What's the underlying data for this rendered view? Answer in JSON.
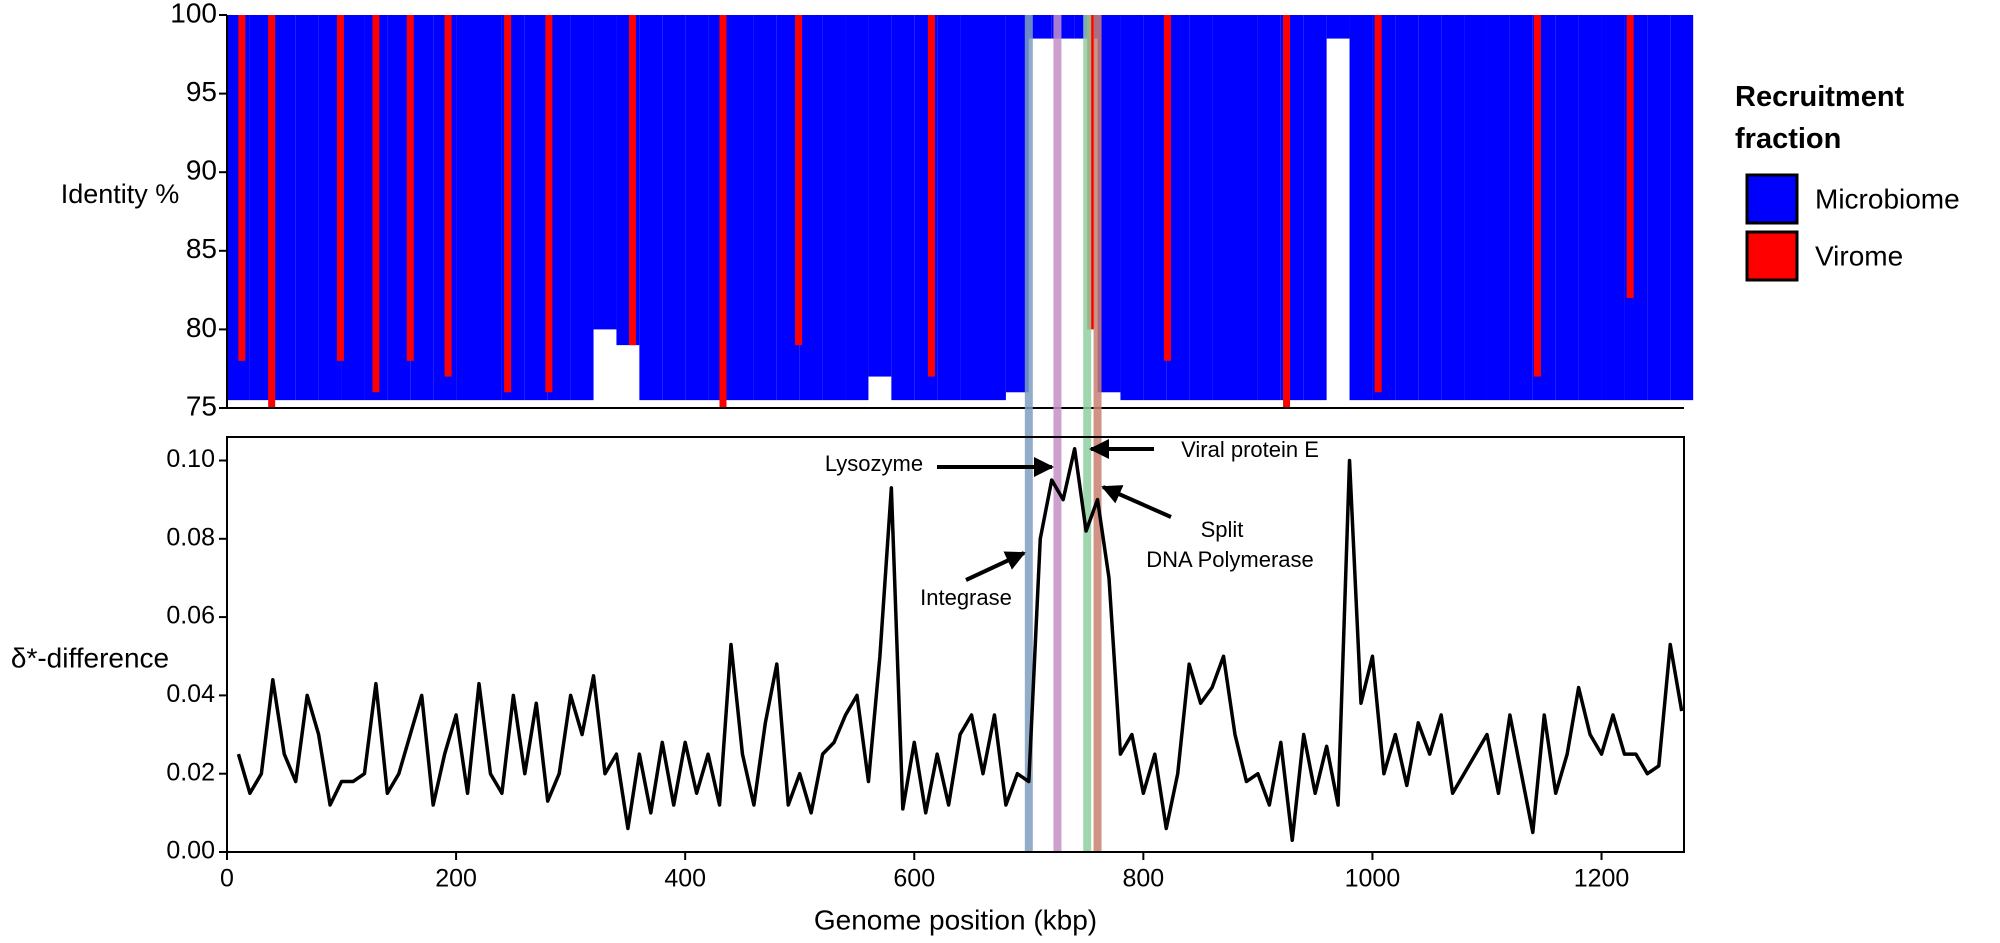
{
  "chart_data": [
    {
      "type": "recruitment",
      "y_label": "Identity %",
      "xlim": [
        0,
        1272
      ],
      "ylim": [
        75,
        100
      ],
      "yticks": [
        75,
        80,
        85,
        90,
        95,
        100
      ],
      "legend_title": "Recruitment fraction",
      "series": [
        {
          "name": "Microbiome",
          "color": "#0000ff",
          "x": [
            10,
            30,
            50,
            70,
            90,
            110,
            130,
            150,
            170,
            190,
            210,
            230,
            250,
            270,
            290,
            310,
            330,
            350,
            370,
            390,
            410,
            430,
            450,
            470,
            490,
            510,
            530,
            550,
            570,
            590,
            610,
            630,
            650,
            670,
            690,
            710,
            730,
            750,
            770,
            790,
            810,
            830,
            850,
            870,
            890,
            910,
            930,
            950,
            970,
            990,
            1010,
            1030,
            1050,
            1070,
            1090,
            1110,
            1130,
            1150,
            1170,
            1190,
            1210,
            1230,
            1250,
            1270
          ],
          "values": [
            75.5,
            75.5,
            75.5,
            75.5,
            75.5,
            75.5,
            75.5,
            75.5,
            75.5,
            75.5,
            75.5,
            75.5,
            75.5,
            75.5,
            75.5,
            75.5,
            80,
            79,
            75.5,
            75.5,
            75.5,
            75.5,
            75.5,
            75.5,
            75.5,
            75.5,
            75.5,
            75.5,
            77,
            75.5,
            75.5,
            75.5,
            75.5,
            75.5,
            76,
            98.5,
            98.5,
            98.5,
            76,
            75.5,
            75.5,
            75.5,
            75.5,
            75.5,
            75.5,
            75.5,
            75.5,
            75.5,
            98.5,
            75.5,
            75.5,
            75.5,
            75.5,
            75.5,
            75.5,
            75.5,
            75.5,
            75.5,
            75.5,
            75.5,
            75.5,
            75.5,
            75.5,
            75.5
          ]
        },
        {
          "name": "Virome",
          "color": "#ff0000",
          "x": [
            13,
            39,
            99,
            130,
            160,
            193,
            245,
            281,
            354,
            433,
            499,
            615,
            754,
            821,
            925,
            1005,
            1144,
            1225
          ],
          "values": [
            78,
            75,
            78,
            76,
            78,
            77,
            76,
            76,
            79,
            75,
            79,
            77,
            80,
            78,
            75,
            76,
            77,
            82
          ]
        }
      ]
    },
    {
      "type": "line",
      "x_label": "Genome position (kbp)",
      "y_label": "δ*-difference",
      "xlim": [
        0,
        1272
      ],
      "ylim": [
        0,
        0.106
      ],
      "xticks": [
        0,
        200,
        400,
        600,
        800,
        1000,
        1200
      ],
      "yticks": [
        {
          "value": 0,
          "label": "0.00"
        },
        {
          "value": 0.02,
          "label": "0.02"
        },
        {
          "value": 0.04,
          "label": "0.04"
        },
        {
          "value": 0.06,
          "label": "0.06"
        },
        {
          "value": 0.08,
          "label": "0.08"
        },
        {
          "value": 0.1,
          "label": "0.10"
        }
      ],
      "color": "#000000",
      "x": [
        10,
        20,
        30,
        40,
        50,
        60,
        70,
        80,
        90,
        100,
        110,
        120,
        130,
        140,
        150,
        160,
        170,
        180,
        190,
        200,
        210,
        220,
        230,
        240,
        250,
        260,
        270,
        280,
        290,
        300,
        310,
        320,
        330,
        340,
        350,
        360,
        370,
        380,
        390,
        400,
        410,
        420,
        430,
        440,
        450,
        460,
        470,
        480,
        490,
        500,
        510,
        520,
        530,
        540,
        550,
        560,
        570,
        580,
        590,
        600,
        610,
        620,
        630,
        640,
        650,
        660,
        670,
        680,
        690,
        700,
        710,
        720,
        730,
        740,
        750,
        760,
        770,
        780,
        790,
        800,
        810,
        820,
        830,
        840,
        850,
        860,
        870,
        880,
        890,
        900,
        910,
        920,
        930,
        940,
        950,
        960,
        970,
        980,
        990,
        1000,
        1010,
        1020,
        1030,
        1040,
        1050,
        1060,
        1070,
        1080,
        1090,
        1100,
        1110,
        1120,
        1130,
        1140,
        1150,
        1160,
        1170,
        1180,
        1190,
        1200,
        1210,
        1220,
        1230,
        1240,
        1250,
        1260,
        1270
      ],
      "values": [
        0.025,
        0.015,
        0.02,
        0.044,
        0.025,
        0.018,
        0.04,
        0.03,
        0.012,
        0.018,
        0.018,
        0.02,
        0.043,
        0.015,
        0.02,
        0.03,
        0.04,
        0.012,
        0.025,
        0.035,
        0.015,
        0.043,
        0.02,
        0.015,
        0.04,
        0.02,
        0.038,
        0.013,
        0.02,
        0.04,
        0.03,
        0.045,
        0.02,
        0.025,
        0.006,
        0.025,
        0.01,
        0.028,
        0.012,
        0.028,
        0.015,
        0.025,
        0.012,
        0.053,
        0.025,
        0.012,
        0.033,
        0.048,
        0.012,
        0.02,
        0.01,
        0.025,
        0.028,
        0.035,
        0.04,
        0.018,
        0.05,
        0.093,
        0.011,
        0.028,
        0.01,
        0.025,
        0.012,
        0.03,
        0.035,
        0.02,
        0.035,
        0.012,
        0.02,
        0.018,
        0.08,
        0.095,
        0.09,
        0.103,
        0.082,
        0.09,
        0.07,
        0.025,
        0.03,
        0.015,
        0.025,
        0.006,
        0.02,
        0.048,
        0.038,
        0.042,
        0.05,
        0.03,
        0.018,
        0.02,
        0.012,
        0.028,
        0.003,
        0.03,
        0.015,
        0.027,
        0.012,
        0.1,
        0.038,
        0.05,
        0.02,
        0.03,
        0.017,
        0.033,
        0.025,
        0.035,
        0.015,
        0.02,
        0.025,
        0.03,
        0.015,
        0.035,
        0.02,
        0.005,
        0.035,
        0.015,
        0.025,
        0.042,
        0.03,
        0.025,
        0.035,
        0.025,
        0.025,
        0.02,
        0.022,
        0.053,
        0.036
      ],
      "highlights": [
        {
          "x": 700,
          "color": "#7f9fc0"
        },
        {
          "x": 725,
          "color": "#c58fc8"
        },
        {
          "x": 751,
          "color": "#8fcfa0"
        },
        {
          "x": 760,
          "color": "#c98070"
        }
      ],
      "annotations": [
        "Lysozyme",
        "Viral protein E",
        "Split",
        "DNA Polymerase",
        "Integrase"
      ]
    }
  ]
}
